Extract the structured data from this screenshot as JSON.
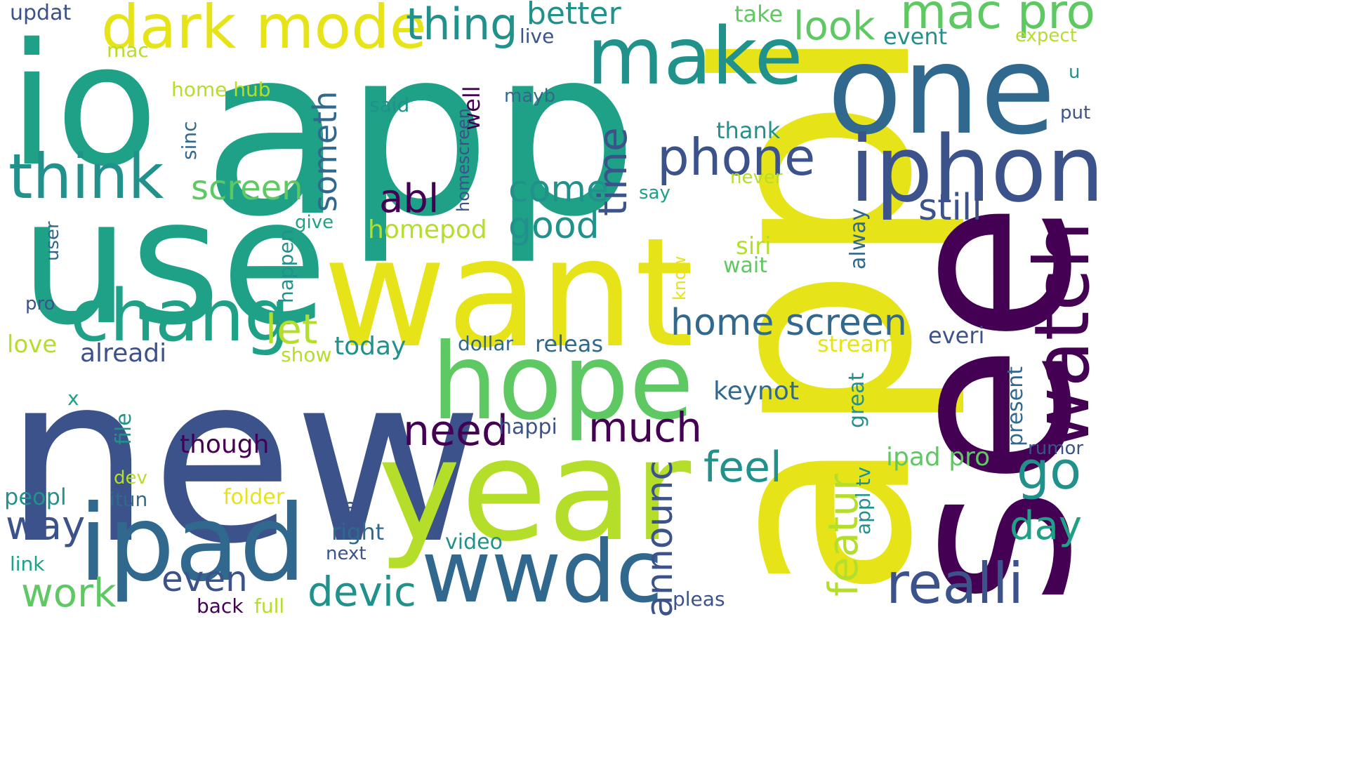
{
  "palette": {
    "dark_purple": "#440154",
    "indigo": "#3b528b",
    "blue": "#31688e",
    "teal": "#21918c",
    "green_teal": "#1fa187",
    "green": "#5ec962",
    "lime": "#b5de2b",
    "yellow": "#e6e419"
  },
  "words": [
    {
      "text": "app",
      "color": "#1fa187",
      "rotated": false
    },
    {
      "text": "appl",
      "color": "#e6e419",
      "rotated": true
    },
    {
      "text": "see",
      "color": "#440154",
      "rotated": true
    },
    {
      "text": "new",
      "color": "#3b528b",
      "rotated": false
    },
    {
      "text": "use",
      "color": "#1fa187",
      "rotated": false
    },
    {
      "text": "io",
      "color": "#1fa187",
      "rotated": false
    },
    {
      "text": "want",
      "color": "#e6e419",
      "rotated": false
    },
    {
      "text": "year",
      "color": "#b5de2b",
      "rotated": false
    },
    {
      "text": "one",
      "color": "#31688e",
      "rotated": false
    },
    {
      "text": "iphon",
      "color": "#3b528b",
      "rotated": false
    },
    {
      "text": "hope",
      "color": "#5ec962",
      "rotated": false
    },
    {
      "text": "ipad",
      "color": "#31688e",
      "rotated": false
    },
    {
      "text": "make",
      "color": "#21918c",
      "rotated": false
    },
    {
      "text": "wwdc",
      "color": "#31688e",
      "rotated": false
    },
    {
      "text": "dark mode",
      "color": "#e6e419",
      "rotated": false
    },
    {
      "text": "watch",
      "color": "#440154",
      "rotated": true
    },
    {
      "text": "chang",
      "color": "#1fa187",
      "rotated": false
    },
    {
      "text": "think",
      "color": "#21918c",
      "rotated": false
    },
    {
      "text": "phone",
      "color": "#3b528b",
      "rotated": false
    },
    {
      "text": "realli",
      "color": "#3b528b",
      "rotated": false
    },
    {
      "text": "mac pro",
      "color": "#5ec962",
      "rotated": false
    },
    {
      "text": "thing",
      "color": "#21918c",
      "rotated": false
    },
    {
      "text": "devic",
      "color": "#21918c",
      "rotated": false
    },
    {
      "text": "home screen",
      "color": "#31688e",
      "rotated": false
    },
    {
      "text": "need",
      "color": "#440154",
      "rotated": false
    },
    {
      "text": "much",
      "color": "#440154",
      "rotated": false
    },
    {
      "text": "feel",
      "color": "#21918c",
      "rotated": false
    },
    {
      "text": "go",
      "color": "#21918c",
      "rotated": false
    },
    {
      "text": "look",
      "color": "#5ec962",
      "rotated": false
    },
    {
      "text": "time",
      "color": "#3b528b",
      "rotated": true
    },
    {
      "text": "featur",
      "color": "#b5de2b",
      "rotated": true
    },
    {
      "text": "announc",
      "color": "#3b528b",
      "rotated": true
    },
    {
      "text": "work",
      "color": "#5ec962",
      "rotated": false
    },
    {
      "text": "even",
      "color": "#3b528b",
      "rotated": false
    },
    {
      "text": "way",
      "color": "#3b528b",
      "rotated": false
    },
    {
      "text": "day",
      "color": "#1fa187",
      "rotated": false
    },
    {
      "text": "come",
      "color": "#21918c",
      "rotated": false
    },
    {
      "text": "good",
      "color": "#21918c",
      "rotated": false
    },
    {
      "text": "abl",
      "color": "#440154",
      "rotated": false
    },
    {
      "text": "let",
      "color": "#b5de2b",
      "rotated": false
    },
    {
      "text": "still",
      "color": "#3b528b",
      "rotated": false
    },
    {
      "text": "screen",
      "color": "#5ec962",
      "rotated": false
    },
    {
      "text": "someth",
      "color": "#31688e",
      "rotated": true
    },
    {
      "text": "better",
      "color": "#21918c",
      "rotated": false
    },
    {
      "text": "ipad pro",
      "color": "#5ec962",
      "rotated": false
    },
    {
      "text": "keynot",
      "color": "#31688e",
      "rotated": false
    },
    {
      "text": "though",
      "color": "#440154",
      "rotated": false
    },
    {
      "text": "today",
      "color": "#21918c",
      "rotated": false
    },
    {
      "text": "homepod",
      "color": "#b5de2b",
      "rotated": false
    },
    {
      "text": "alreadi",
      "color": "#3b528b",
      "rotated": false
    },
    {
      "text": "love",
      "color": "#b5de2b",
      "rotated": false
    },
    {
      "text": "peopl",
      "color": "#21918c",
      "rotated": false
    },
    {
      "text": "call",
      "color": "#3b528b",
      "rotated": false
    },
    {
      "text": "right",
      "color": "#31688e",
      "rotated": false
    },
    {
      "text": "video",
      "color": "#21918c",
      "rotated": false
    },
    {
      "text": "releas",
      "color": "#31688e",
      "rotated": false
    },
    {
      "text": "dollar",
      "color": "#31688e",
      "rotated": false
    },
    {
      "text": "happi",
      "color": "#3b528b",
      "rotated": false
    },
    {
      "text": "everi",
      "color": "#3b528b",
      "rotated": false
    },
    {
      "text": "stream",
      "color": "#e6e419",
      "rotated": false
    },
    {
      "text": "siri",
      "color": "#b5de2b",
      "rotated": false
    },
    {
      "text": "wait",
      "color": "#5ec962",
      "rotated": false
    },
    {
      "text": "thank",
      "color": "#21918c",
      "rotated": false
    },
    {
      "text": "never",
      "color": "#b5de2b",
      "rotated": false
    },
    {
      "text": "say",
      "color": "#1fa187",
      "rotated": false
    },
    {
      "text": "home hub",
      "color": "#b5de2b",
      "rotated": false
    },
    {
      "text": "sinc",
      "color": "#31688e",
      "rotated": true
    },
    {
      "text": "well",
      "color": "#440154",
      "rotated": true
    },
    {
      "text": "homescreen",
      "color": "#3b528b",
      "rotated": true
    },
    {
      "text": "mayb",
      "color": "#31688e",
      "rotated": false
    },
    {
      "text": "said",
      "color": "#21918c",
      "rotated": false
    },
    {
      "text": "event",
      "color": "#21918c",
      "rotated": false
    },
    {
      "text": "take",
      "color": "#5ec962",
      "rotated": false
    },
    {
      "text": "live",
      "color": "#3b528b",
      "rotated": false
    },
    {
      "text": "expect",
      "color": "#b5de2b",
      "rotated": false
    },
    {
      "text": "updat",
      "color": "#3b528b",
      "rotated": false
    },
    {
      "text": "mac",
      "color": "#b5de2b",
      "rotated": false
    },
    {
      "text": "u",
      "color": "#21918c",
      "rotated": false
    },
    {
      "text": "put",
      "color": "#3b528b",
      "rotated": false
    },
    {
      "text": "happen",
      "color": "#21918c",
      "rotated": true
    },
    {
      "text": "give",
      "color": "#1fa187",
      "rotated": false
    },
    {
      "text": "user",
      "color": "#31688e",
      "rotated": true
    },
    {
      "text": "pro",
      "color": "#3b528b",
      "rotated": false
    },
    {
      "text": "know",
      "color": "#e6e419",
      "rotated": true
    },
    {
      "text": "alway",
      "color": "#31688e",
      "rotated": true
    },
    {
      "text": "show",
      "color": "#b5de2b",
      "rotated": false
    },
    {
      "text": "x",
      "color": "#1fa187",
      "rotated": false
    },
    {
      "text": "file",
      "color": "#21918c",
      "rotated": true
    },
    {
      "text": "dev",
      "color": "#b5de2b",
      "rotated": false
    },
    {
      "text": "itun",
      "color": "#31688e",
      "rotated": false
    },
    {
      "text": "folder",
      "color": "#e6e419",
      "rotated": false
    },
    {
      "text": "great",
      "color": "#21918c",
      "rotated": true
    },
    {
      "text": "present",
      "color": "#31688e",
      "rotated": true
    },
    {
      "text": "rumor",
      "color": "#3b528b",
      "rotated": false
    },
    {
      "text": "appl tv",
      "color": "#21918c",
      "rotated": true
    },
    {
      "text": "next",
      "color": "#3b528b",
      "rotated": false
    },
    {
      "text": "link",
      "color": "#1fa187",
      "rotated": false
    },
    {
      "text": "back",
      "color": "#440154",
      "rotated": false
    },
    {
      "text": "full",
      "color": "#b5de2b",
      "rotated": false
    },
    {
      "text": "pleas",
      "color": "#3b528b",
      "rotated": false
    }
  ]
}
